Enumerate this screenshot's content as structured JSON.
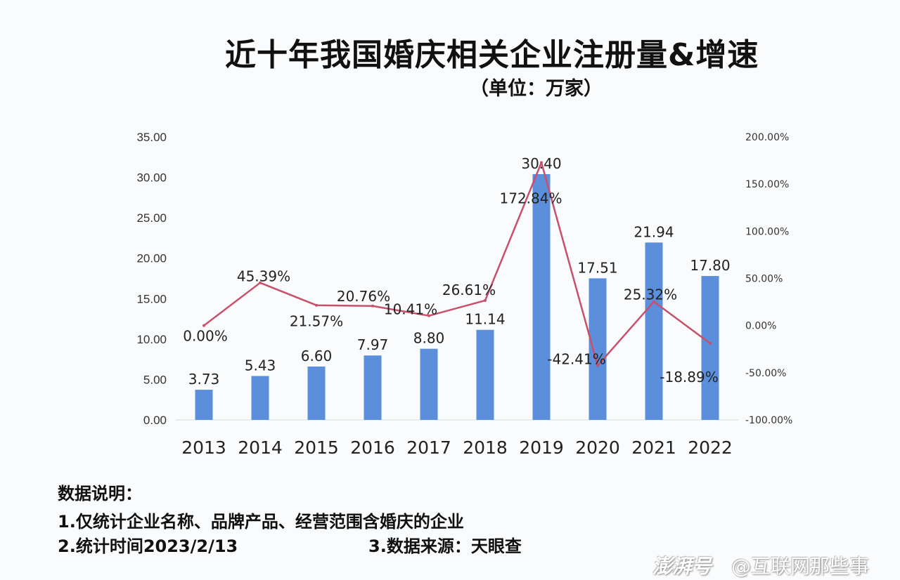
{
  "chart_data": {
    "type": "bar+line",
    "title": "近十年我国婚庆相关企业注册量&增速",
    "subtitle": "（单位：万家）",
    "categories": [
      "2013",
      "2014",
      "2015",
      "2016",
      "2017",
      "2018",
      "2019",
      "2020",
      "2021",
      "2022"
    ],
    "series": [
      {
        "name": "注册量",
        "type": "bar",
        "axis": "left",
        "color": "#5b8fdc",
        "values": [
          3.73,
          5.43,
          6.6,
          7.97,
          8.8,
          11.14,
          30.4,
          17.51,
          21.94,
          17.8
        ],
        "labels": [
          "3.73",
          "5.43",
          "6.60",
          "7.97",
          "8.80",
          "11.14",
          "30.40",
          "17.51",
          "21.94",
          "17.80"
        ]
      },
      {
        "name": "增速",
        "type": "line",
        "axis": "right",
        "color": "#c9506a",
        "values": [
          0.0,
          45.39,
          21.57,
          20.76,
          10.41,
          26.61,
          172.84,
          -42.41,
          25.32,
          -18.89
        ],
        "labels": [
          "0.00%",
          "45.39%",
          "21.57%",
          "20.76%",
          "10.41%",
          "26.61%",
          "172.84%",
          "-42.41%",
          "25.32%",
          "-18.89%"
        ]
      }
    ],
    "left_axis": {
      "ylim": [
        0,
        35
      ],
      "ticks": [
        "0.00",
        "5.00",
        "10.00",
        "15.00",
        "20.00",
        "25.00",
        "30.00",
        "35.00"
      ]
    },
    "right_axis": {
      "ylim": [
        -100,
        200
      ],
      "ticks": [
        "-100.00%",
        "-50.00%",
        "0.00%",
        "50.00%",
        "100.00%",
        "150.00%",
        "200.00%"
      ]
    },
    "grid": false,
    "legend": "none"
  },
  "notes": {
    "heading": "数据说明：",
    "line1": "1.仅统计企业名称、品牌产品、经营范围含婚庆的企业",
    "line2": "2.统计时间2023/2/13",
    "line3": "3.数据来源：天眼查"
  },
  "watermark": {
    "brand": "澎湃号",
    "author": "@互联网那些事"
  }
}
